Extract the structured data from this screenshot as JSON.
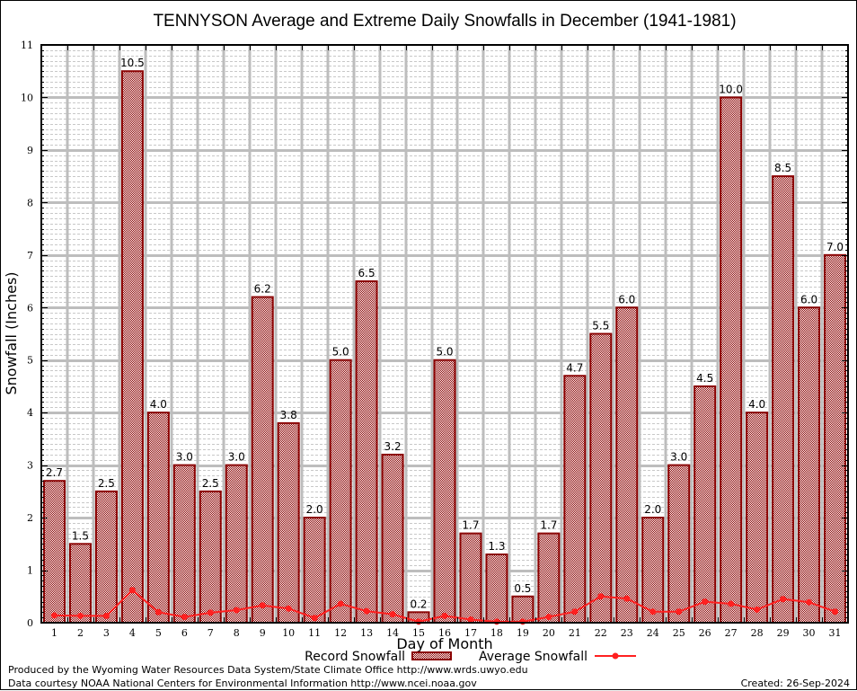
{
  "chart_data": {
    "type": "bar",
    "title": "TENNYSON Average and Extreme Daily Snowfalls in December (1941-1981)",
    "xlabel": "Day of Month",
    "ylabel": "Snowfall (Inches)",
    "ylim": [
      0,
      11
    ],
    "yticks": [
      "0",
      "1",
      "2",
      "3",
      "4",
      "5",
      "6",
      "7",
      "8",
      "9",
      "10",
      "11"
    ],
    "grid": true,
    "categories": [
      "1",
      "2",
      "3",
      "4",
      "5",
      "6",
      "7",
      "8",
      "9",
      "10",
      "11",
      "12",
      "13",
      "14",
      "15",
      "16",
      "17",
      "18",
      "19",
      "20",
      "21",
      "22",
      "23",
      "24",
      "25",
      "26",
      "27",
      "28",
      "29",
      "30",
      "31"
    ],
    "series": [
      {
        "name": "Record Snowfall",
        "type": "bar",
        "color": "#8b0000",
        "values": [
          2.7,
          1.5,
          2.5,
          10.5,
          4.0,
          3.0,
          2.5,
          3.0,
          6.2,
          3.8,
          2.0,
          5.0,
          6.5,
          3.2,
          0.2,
          5.0,
          1.7,
          1.3,
          0.5,
          1.7,
          4.7,
          5.5,
          6.0,
          2.0,
          3.0,
          4.5,
          10.0,
          4.0,
          8.5,
          6.0,
          7.0
        ],
        "labels": [
          "2.7",
          "1.5",
          "2.5",
          "10.5",
          "4.0",
          "3.0",
          "2.5",
          "3.0",
          "6.2",
          "3.8",
          "2.0",
          "5.0",
          "6.5",
          "3.2",
          "0.2",
          "5.0",
          "1.7",
          "1.3",
          "0.5",
          "1.7",
          "4.7",
          "5.5",
          "6.0",
          "2.0",
          "3.0",
          "4.5",
          "10.0",
          "4.0",
          "8.5",
          "6.0",
          "7.0"
        ]
      },
      {
        "name": "Average Snowfall",
        "type": "line",
        "color": "#ff2020",
        "values": [
          0.14,
          0.13,
          0.13,
          0.62,
          0.2,
          0.11,
          0.19,
          0.24,
          0.33,
          0.27,
          0.09,
          0.36,
          0.22,
          0.16,
          0.02,
          0.13,
          0.06,
          0.02,
          0.02,
          0.11,
          0.21,
          0.5,
          0.46,
          0.21,
          0.21,
          0.4,
          0.36,
          0.25,
          0.45,
          0.39,
          0.21
        ]
      }
    ],
    "legend": {
      "placement": "bottom",
      "items": [
        "Record Snowfall",
        "Average Snowfall"
      ]
    }
  },
  "footer": {
    "line1": "Produced by the Wyoming Water Resources Data System/State Climate Office http://www.wrds.uwyo.edu",
    "line2": "Data courtesy NOAA National Centers for Environmental Information http://www.ncei.noaa.gov",
    "created": "Created:  26-Sep-2024"
  }
}
